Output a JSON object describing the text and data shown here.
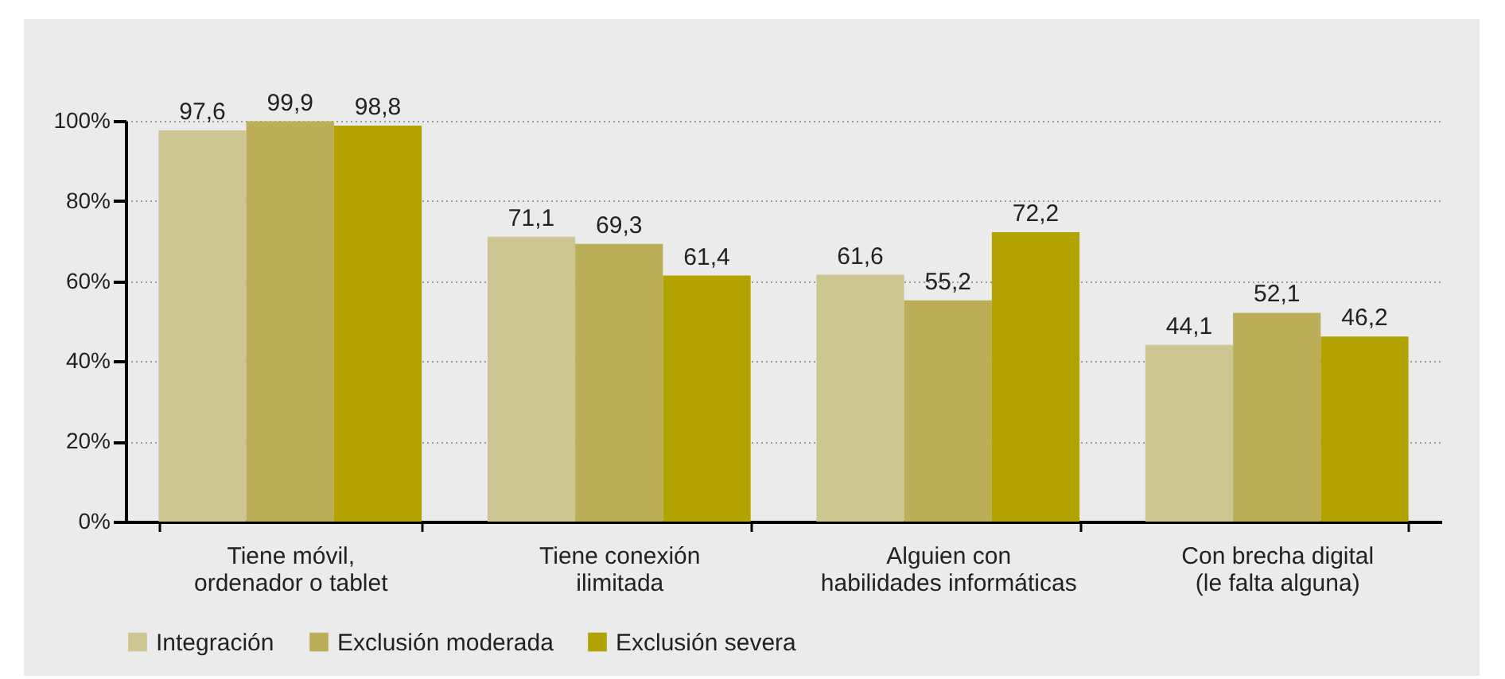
{
  "chart_data": {
    "type": "bar",
    "categories": [
      "Tiene móvil,\nordenador o tablet",
      "Tiene conexión\nilimitada",
      "Alguien con\nhabilidades informáticas",
      "Con brecha digital\n(le falta alguna)"
    ],
    "series": [
      {
        "name": "Integración",
        "color": "#cdc592",
        "values": [
          97.6,
          71.1,
          61.6,
          44.1
        ],
        "value_labels": [
          "97,6",
          "71,1",
          "61,6",
          "44,1"
        ]
      },
      {
        "name": "Exclusión moderada",
        "color": "#bcae58",
        "values": [
          99.9,
          69.3,
          55.2,
          52.1
        ],
        "value_labels": [
          "99,9",
          "69,3",
          "55,2",
          "52,1"
        ]
      },
      {
        "name": "Exclusión severa",
        "color": "#b3a300",
        "values": [
          98.8,
          61.4,
          72.2,
          46.2
        ],
        "value_labels": [
          "98,8",
          "61,4",
          "72,2",
          "46,2"
        ]
      }
    ],
    "ylim": [
      0,
      100
    ],
    "yticks": [
      {
        "value": 0,
        "label": "0%"
      },
      {
        "value": 20,
        "label": "20%"
      },
      {
        "value": 40,
        "label": "40%"
      },
      {
        "value": 60,
        "label": "60%"
      },
      {
        "value": 80,
        "label": "80%"
      },
      {
        "value": 100,
        "label": "100%"
      }
    ],
    "grid": "y",
    "legend": "bottom"
  }
}
